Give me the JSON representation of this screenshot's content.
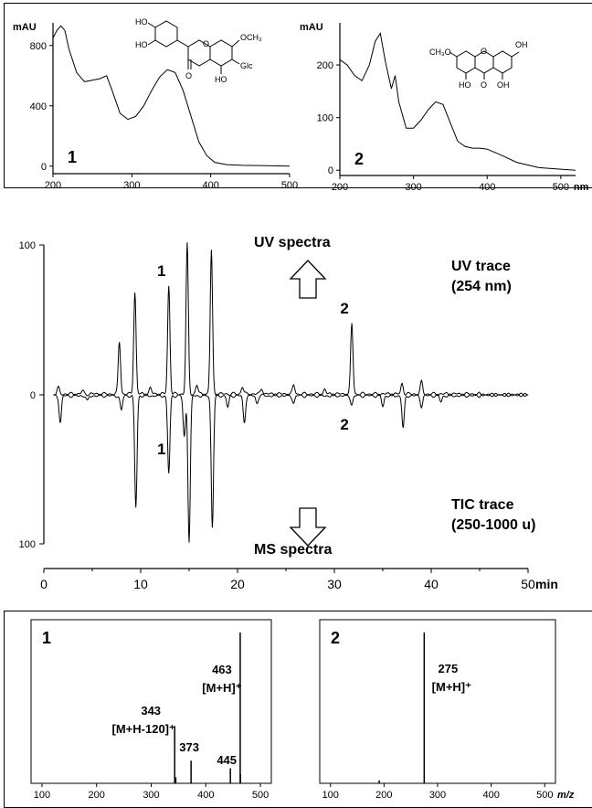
{
  "top_frame": {
    "left_label": "",
    "right_label": ""
  },
  "mid": {
    "uv_spectra": "UV spectra",
    "uv_trace_1": "UV trace",
    "uv_trace_2": "(254 nm)",
    "tic_trace_1": "TIC trace",
    "tic_trace_2": "(250-1000 u)",
    "ms_spectra": "MS spectra"
  },
  "chart_data": [
    {
      "id": "uv1",
      "type": "line",
      "panel_label": "1",
      "ylabel": "mAU",
      "x_ticks": [
        200,
        300,
        400,
        500
      ],
      "y_ticks": [
        0,
        400,
        800
      ],
      "xlim": [
        200,
        500
      ],
      "ylim": [
        -50,
        950
      ],
      "x": [
        200,
        205,
        210,
        215,
        220,
        230,
        240,
        250,
        260,
        268,
        275,
        285,
        295,
        305,
        315,
        325,
        335,
        345,
        355,
        365,
        375,
        385,
        395,
        405,
        420,
        440,
        470,
        500
      ],
      "y": [
        850,
        900,
        930,
        900,
        780,
        620,
        560,
        570,
        580,
        600,
        500,
        350,
        310,
        330,
        400,
        500,
        590,
        640,
        620,
        500,
        330,
        160,
        70,
        25,
        10,
        5,
        3,
        0
      ],
      "structure_labels": [
        "HO",
        "HO",
        "OCH₃",
        "Glc",
        "O",
        "HO",
        "O"
      ]
    },
    {
      "id": "uv2",
      "type": "line",
      "panel_label": "2",
      "ylabel": "mAU",
      "x_ticks": [
        200,
        300,
        400,
        500
      ],
      "x_unit": "nm",
      "y_ticks": [
        0,
        100,
        200
      ],
      "xlim": [
        200,
        520
      ],
      "ylim": [
        -10,
        280
      ],
      "x": [
        200,
        210,
        220,
        230,
        240,
        248,
        255,
        262,
        270,
        275,
        280,
        290,
        300,
        310,
        320,
        330,
        340,
        350,
        360,
        370,
        380,
        390,
        400,
        420,
        440,
        470,
        500,
        520
      ],
      "y": [
        210,
        200,
        180,
        170,
        200,
        245,
        260,
        205,
        155,
        180,
        130,
        80,
        80,
        95,
        115,
        130,
        125,
        90,
        55,
        45,
        42,
        42,
        40,
        28,
        15,
        5,
        2,
        0
      ],
      "structure_labels": [
        "CH₃O",
        "OH",
        "HO",
        "O",
        "OH",
        "O"
      ]
    },
    {
      "id": "chromatogram",
      "type": "line",
      "x_ticks": [
        0,
        10,
        20,
        30,
        40,
        50
      ],
      "x_unit": "min",
      "y_ticks_top": [
        100,
        0
      ],
      "y_ticks_bottom": [
        100
      ],
      "xlim": [
        0,
        50
      ],
      "series": [
        {
          "name": "UV trace (254 nm)",
          "peaks": [
            {
              "t": 1.5,
              "h": 4
            },
            {
              "t": 4.0,
              "h": 2
            },
            {
              "t": 7.8,
              "h": 35
            },
            {
              "t": 9.4,
              "h": 68
            },
            {
              "t": 11.0,
              "h": 4
            },
            {
              "t": 12.9,
              "h": 72
            },
            {
              "t": 14.8,
              "h": 100
            },
            {
              "t": 15.8,
              "h": 6
            },
            {
              "t": 17.3,
              "h": 96
            },
            {
              "t": 20.5,
              "h": 5
            },
            {
              "t": 22.5,
              "h": 4
            },
            {
              "t": 25.8,
              "h": 6
            },
            {
              "t": 29.0,
              "h": 3
            },
            {
              "t": 31.8,
              "h": 47
            },
            {
              "t": 37.0,
              "h": 7
            },
            {
              "t": 39.0,
              "h": 8
            }
          ],
          "annotations": [
            {
              "t": 12.9,
              "text": "1"
            },
            {
              "t": 31.8,
              "text": "2"
            }
          ]
        },
        {
          "name": "TIC trace (250-1000 u)",
          "peaks": [
            {
              "t": 1.7,
              "h": 18
            },
            {
              "t": 4.5,
              "h": 4
            },
            {
              "t": 8.0,
              "h": 10
            },
            {
              "t": 9.5,
              "h": 75
            },
            {
              "t": 12.9,
              "h": 52
            },
            {
              "t": 14.5,
              "h": 28
            },
            {
              "t": 15.0,
              "h": 98
            },
            {
              "t": 17.4,
              "h": 88
            },
            {
              "t": 19.0,
              "h": 8
            },
            {
              "t": 20.7,
              "h": 18
            },
            {
              "t": 22.0,
              "h": 5
            },
            {
              "t": 25.8,
              "h": 5
            },
            {
              "t": 31.8,
              "h": 6
            },
            {
              "t": 35.0,
              "h": 7
            },
            {
              "t": 37.1,
              "h": 22
            },
            {
              "t": 39.0,
              "h": 7
            },
            {
              "t": 41.0,
              "h": 4
            }
          ],
          "annotations": [
            {
              "t": 12.9,
              "text": "1"
            },
            {
              "t": 31.8,
              "text": "2"
            }
          ]
        }
      ]
    },
    {
      "id": "ms1",
      "type": "bar",
      "panel_label": "1",
      "x_ticks": [
        100,
        200,
        300,
        400,
        500
      ],
      "xlim": [
        80,
        520
      ],
      "peaks": [
        {
          "mz": 343,
          "intensity": 38
        },
        {
          "mz": 373,
          "intensity": 15
        },
        {
          "mz": 445,
          "intensity": 10
        },
        {
          "mz": 463,
          "intensity": 100
        },
        {
          "mz": 345,
          "intensity": 4
        },
        {
          "mz": 463.5,
          "intensity": 6
        }
      ],
      "labels": [
        {
          "mz": 463,
          "lines": [
            "463",
            "[M+H]⁺"
          ]
        },
        {
          "mz": 343,
          "lines": [
            "343",
            "[M+H-120]⁺"
          ]
        },
        {
          "mz": 373,
          "lines": [
            "373"
          ]
        },
        {
          "mz": 445,
          "lines": [
            "445"
          ]
        }
      ]
    },
    {
      "id": "ms2",
      "type": "bar",
      "panel_label": "2",
      "x_ticks": [
        100,
        200,
        300,
        400,
        500
      ],
      "x_unit": "m/z",
      "xlim": [
        80,
        520
      ],
      "peaks": [
        {
          "mz": 275,
          "intensity": 100
        },
        {
          "mz": 191,
          "intensity": 2
        }
      ],
      "labels": [
        {
          "mz": 275,
          "lines": [
            "275",
            "[M+H]⁺"
          ]
        }
      ]
    }
  ]
}
